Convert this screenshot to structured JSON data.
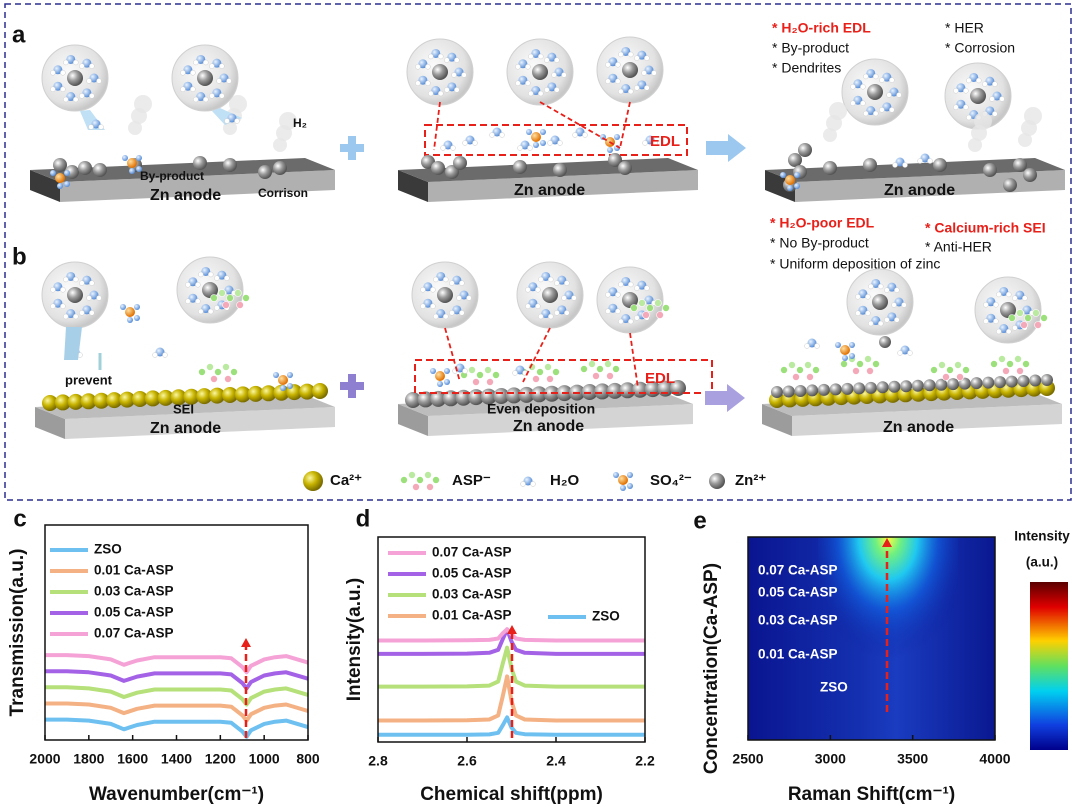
{
  "schematic": {
    "panel_a": {
      "label": "a",
      "left": {
        "byproduct": "By-product",
        "anode": "Zn anode",
        "corrosion": "Corrison",
        "gas": "H₂"
      },
      "middle": {
        "edl": "EDL",
        "anode": "Zn anode"
      },
      "right": {
        "notes": [
          "* H₂O-rich EDL",
          "* By-product",
          "* Dendrites",
          "* HER",
          "* Corrosion"
        ],
        "anode": "Zn anode"
      }
    },
    "panel_b": {
      "label": "b",
      "left": {
        "prevent": "prevent",
        "sei": "SEI",
        "anode": "Zn anode"
      },
      "middle": {
        "edl": "EDL",
        "deposition": "Even deposition",
        "anode": "Zn anode"
      },
      "right": {
        "notes": [
          "* H₂O-poor EDL",
          "* No By-product",
          "* Uniform deposition of zinc",
          "* Calcium-rich SEI",
          "* Anti-HER"
        ],
        "anode": "Zn anode"
      }
    },
    "legend": [
      "Ca²⁺",
      "ASP⁻",
      "H₂O",
      "SO₄²⁻",
      "Zn²⁺"
    ]
  },
  "chart_data": [
    {
      "type": "line",
      "panel": "c",
      "xlabel": "Wavenumber(cm⁻¹)",
      "ylabel": "Transmission(a.u.)",
      "x": [
        2000,
        1900,
        1800,
        1700,
        1640,
        1580,
        1500,
        1400,
        1300,
        1200,
        1150,
        1100,
        1080,
        1060,
        1000,
        950,
        900,
        800
      ],
      "xlim": [
        2000,
        800
      ],
      "xticks": [
        2000,
        1800,
        1600,
        1400,
        1200,
        1000,
        800
      ],
      "ylim": [
        0,
        10
      ],
      "series": [
        {
          "name": "ZSO",
          "color": "#6ec0f0",
          "values": [
            0.95,
            0.95,
            0.9,
            0.75,
            0.5,
            0.7,
            0.85,
            0.85,
            0.85,
            0.85,
            0.8,
            0.4,
            0.15,
            0.45,
            0.75,
            0.85,
            0.9,
            0.6
          ]
        },
        {
          "name": "0.01 Ca-ASP",
          "color": "#f4b183",
          "values": [
            1.7,
            1.7,
            1.65,
            1.5,
            1.25,
            1.45,
            1.6,
            1.6,
            1.6,
            1.6,
            1.55,
            1.15,
            0.9,
            1.2,
            1.5,
            1.6,
            1.65,
            1.35
          ]
        },
        {
          "name": "0.03 Ca-ASP",
          "color": "#b5e07a",
          "values": [
            2.45,
            2.45,
            2.4,
            2.25,
            2.0,
            2.2,
            2.35,
            2.35,
            2.35,
            2.35,
            2.3,
            1.9,
            1.65,
            1.95,
            2.25,
            2.35,
            2.4,
            2.1
          ]
        },
        {
          "name": "0.05 Ca-ASP",
          "color": "#a463e6",
          "values": [
            3.2,
            3.2,
            3.15,
            3.0,
            2.75,
            2.95,
            3.1,
            3.1,
            3.1,
            3.1,
            3.05,
            2.65,
            2.4,
            2.7,
            3.0,
            3.1,
            3.15,
            2.85
          ]
        },
        {
          "name": "0.07 Ca-ASP",
          "color": "#f5a3d6",
          "values": [
            3.95,
            3.95,
            3.9,
            3.75,
            3.5,
            3.7,
            3.85,
            3.85,
            3.85,
            3.85,
            3.8,
            3.4,
            3.15,
            3.45,
            3.75,
            3.85,
            3.9,
            3.6
          ]
        }
      ]
    },
    {
      "type": "line",
      "panel": "d",
      "xlabel": "Chemical shift(ppm)",
      "ylabel": "Intensity(a.u.)",
      "x": [
        2.8,
        2.7,
        2.6,
        2.55,
        2.53,
        2.52,
        2.51,
        2.5,
        2.49,
        2.47,
        2.4,
        2.3,
        2.2
      ],
      "xlim": [
        2.8,
        2.2
      ],
      "xticks": [
        2.8,
        2.6,
        2.4,
        2.2
      ],
      "ylim": [
        0,
        10
      ],
      "series": [
        {
          "name": "ZSO",
          "color": "#6ec0f0",
          "values": [
            0.35,
            0.35,
            0.35,
            0.37,
            0.45,
            0.8,
            1.2,
            0.7,
            0.45,
            0.38,
            0.35,
            0.35,
            0.35
          ]
        },
        {
          "name": "0.01 Ca-ASP",
          "color": "#f4b183",
          "values": [
            1.05,
            1.05,
            1.06,
            1.1,
            1.3,
            2.2,
            3.2,
            2.0,
            1.3,
            1.1,
            1.05,
            1.05,
            1.05
          ]
        },
        {
          "name": "0.03 Ca-ASP",
          "color": "#b5e07a",
          "values": [
            2.7,
            2.7,
            2.71,
            2.75,
            2.95,
            3.8,
            4.6,
            3.6,
            2.95,
            2.75,
            2.7,
            2.7,
            2.7
          ]
        },
        {
          "name": "0.05 Ca-ASP",
          "color": "#a463e6",
          "values": [
            4.3,
            4.3,
            4.31,
            4.35,
            4.5,
            5.0,
            5.5,
            4.9,
            4.5,
            4.35,
            4.3,
            4.3,
            4.3
          ]
        },
        {
          "name": "0.07 Ca-ASP",
          "color": "#f5a3d6",
          "values": [
            4.95,
            4.95,
            4.96,
            4.98,
            5.05,
            5.3,
            5.5,
            5.25,
            5.05,
            4.98,
            4.95,
            4.95,
            4.95
          ]
        }
      ]
    },
    {
      "type": "heatmap",
      "panel": "e",
      "xlabel": "Raman Shift(cm⁻¹)",
      "ylabel": "Concentration(Ca-ASP)",
      "xlim": [
        2500,
        4000
      ],
      "xticks": [
        2500,
        3000,
        3500,
        4000
      ],
      "categories": [
        "ZSO",
        "0.01 Ca-ASP",
        "0.03 Ca-ASP",
        "0.05 Ca-ASP",
        "0.07 Ca-ASP"
      ],
      "colorbar_label": [
        "Intensity",
        "(a.u.)"
      ]
    }
  ]
}
